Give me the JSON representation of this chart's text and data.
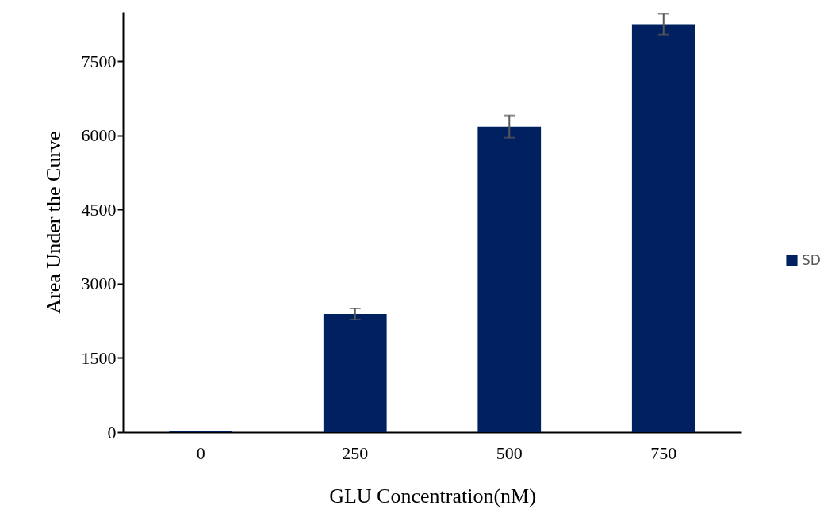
{
  "chart_data": {
    "type": "bar",
    "xlabel": "GLU Concentration(nM)",
    "ylabel": "Area Under the Curve",
    "categories": [
      "0",
      "250",
      "500",
      "750"
    ],
    "series": [
      {
        "name": "SD",
        "color": "#012060",
        "values": [
          20,
          2390,
          6180,
          8250
        ],
        "errors": [
          null,
          112,
          225,
          210
        ]
      }
    ],
    "ylim": [
      0,
      8500
    ],
    "yticks": [
      0,
      1500,
      3000,
      4500,
      6000,
      7500
    ],
    "legend": "right"
  }
}
